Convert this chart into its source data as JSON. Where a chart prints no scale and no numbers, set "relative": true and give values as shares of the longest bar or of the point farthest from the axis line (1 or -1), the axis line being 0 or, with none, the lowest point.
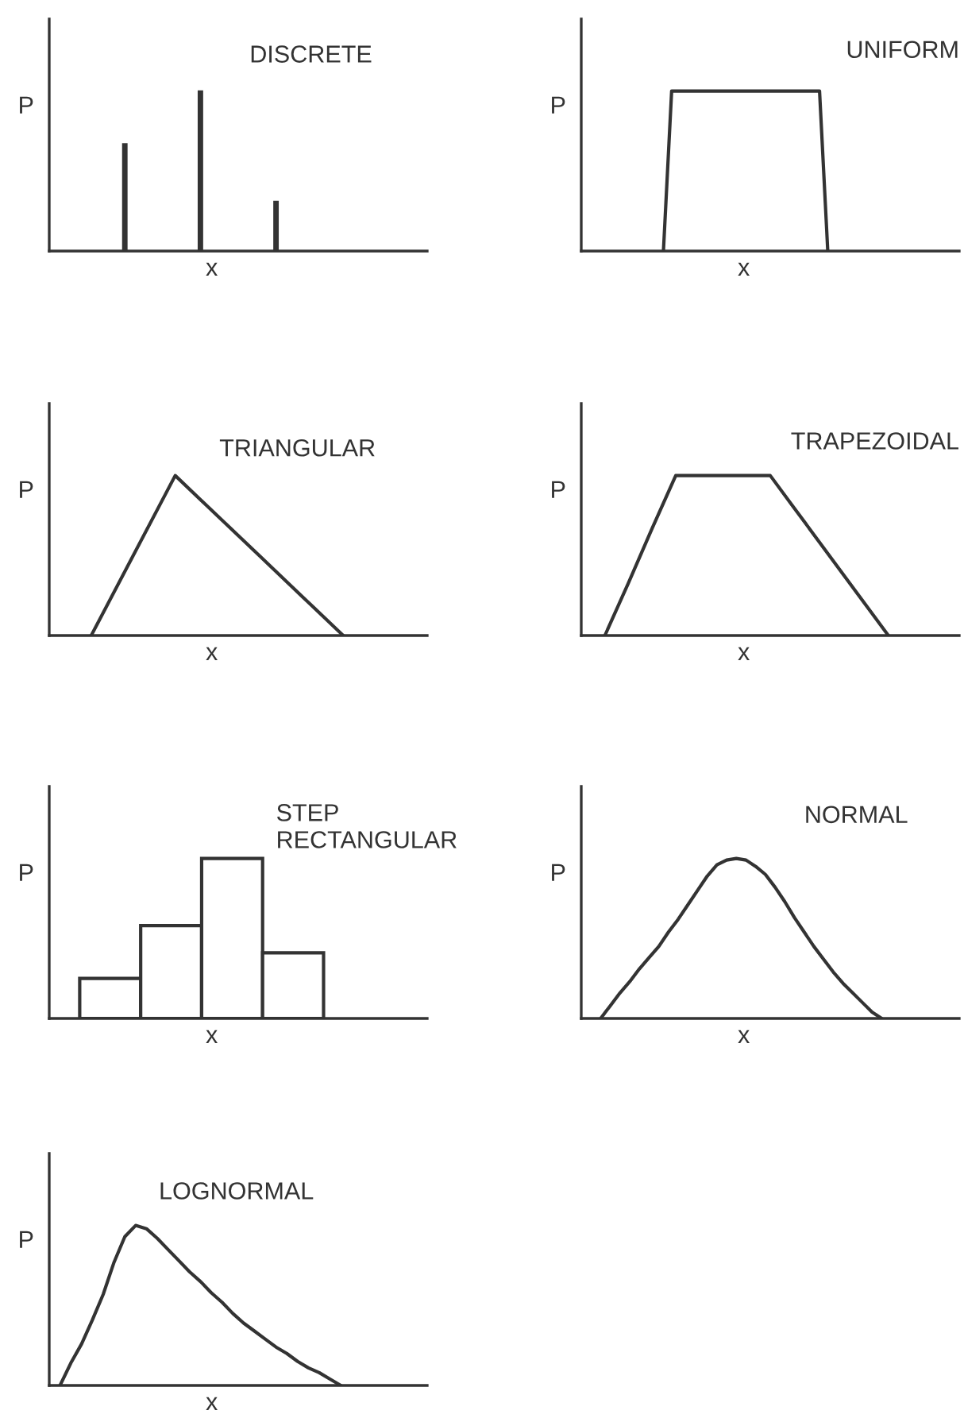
{
  "chart_data": [
    {
      "type": "bar",
      "title": "DISCRETE",
      "xlabel": "x",
      "ylabel": "P",
      "relative": true,
      "categories": [
        null,
        null,
        null
      ],
      "series": [
        {
          "color": "#333333",
          "values": [
            0.67,
            1,
            0.31
          ]
        }
      ]
    },
    {
      "type": "line",
      "title": "UNIFORM",
      "xlabel": "x",
      "ylabel": "P",
      "relative": true,
      "categories": [
        null,
        null,
        null,
        null,
        null,
        null,
        null,
        null,
        null,
        null,
        null,
        null,
        null,
        null,
        null,
        null,
        null,
        null,
        null,
        null,
        null,
        null,
        null,
        null,
        null,
        null,
        null,
        null,
        null,
        null,
        null,
        null,
        null,
        null,
        null,
        null,
        null,
        null,
        null,
        null,
        null,
        null,
        null,
        null,
        null,
        null,
        null
      ],
      "series": [
        {
          "color": "#333333",
          "values": [
            null,
            null,
            null,
            null,
            null,
            null,
            null,
            null,
            null,
            null,
            0,
            1,
            1,
            1,
            1,
            1,
            1,
            1,
            1,
            1,
            1,
            1,
            1,
            1,
            1,
            1,
            1,
            1,
            1,
            1,
            0,
            null,
            null,
            null,
            null,
            null,
            null,
            null,
            null,
            null,
            null,
            null,
            null,
            null,
            null,
            null,
            null
          ]
        }
      ]
    },
    {
      "type": "line",
      "title": "TRIANGULAR",
      "xlabel": "x",
      "ylabel": "P",
      "relative": true,
      "categories": [
        null,
        null,
        null,
        null,
        null,
        null,
        null,
        null,
        null,
        null
      ],
      "series": [
        {
          "color": "#333333",
          "values": [
            null,
            0,
            0.5,
            1,
            0.75,
            0.5,
            0.25,
            0,
            null,
            null
          ]
        }
      ]
    },
    {
      "type": "line",
      "title": "TRAPEZOIDAL",
      "xlabel": "x",
      "ylabel": "P",
      "relative": true,
      "categories": [
        null,
        null,
        null,
        null,
        null,
        null,
        null,
        null,
        null,
        null,
        null,
        null,
        null,
        null,
        null,
        null,
        null
      ],
      "series": [
        {
          "color": "#333333",
          "values": [
            null,
            0,
            0.33,
            0.67,
            1,
            1,
            1,
            1,
            1,
            0.8,
            0.6,
            0.4,
            0.2,
            0,
            null,
            null,
            null
          ]
        }
      ]
    },
    {
      "type": "bar",
      "title": "STEP\nRECTANGULAR",
      "xlabel": "x",
      "ylabel": "P",
      "relative": true,
      "categories": [
        null,
        null,
        null,
        null
      ],
      "series": [
        {
          "color": "#ffffff",
          "values": [
            0.25,
            0.58,
            1,
            0.41
          ]
        }
      ]
    },
    {
      "type": "line",
      "title": "NORMAL",
      "xlabel": "x",
      "ylabel": "P",
      "relative": true,
      "categories": [
        null,
        null,
        null,
        null,
        null,
        null,
        null,
        null,
        null,
        null,
        null,
        null,
        null,
        null,
        null,
        null,
        null,
        null,
        null,
        null,
        null,
        null,
        null,
        null,
        null,
        null,
        null,
        null,
        null,
        null,
        null,
        null,
        null,
        null,
        null,
        null,
        null,
        null,
        null,
        null
      ],
      "series": [
        {
          "color": "#333333",
          "values": [
            null,
            null,
            0,
            0.08,
            0.16,
            0.23,
            0.31,
            0.38,
            0.45,
            0.54,
            0.62,
            0.71,
            0.8,
            0.89,
            0.96,
            0.99,
            1,
            0.99,
            0.95,
            0.9,
            0.82,
            0.73,
            0.63,
            0.54,
            0.45,
            0.37,
            0.29,
            0.22,
            0.16,
            0.1,
            0.04,
            0,
            null,
            null,
            null,
            null,
            null,
            null,
            null,
            null
          ]
        }
      ]
    },
    {
      "type": "line",
      "title": "LOGNORMAL",
      "xlabel": "x",
      "ylabel": "P",
      "relative": true,
      "categories": [
        null,
        null,
        null,
        null,
        null,
        null,
        null,
        null,
        null,
        null,
        null,
        null,
        null,
        null,
        null,
        null,
        null,
        null,
        null,
        null,
        null,
        null,
        null,
        null,
        null,
        null,
        null,
        null,
        null,
        null,
        null,
        null,
        null,
        null,
        null,
        null
      ],
      "series": [
        {
          "color": "#333333",
          "values": [
            null,
            0,
            0.14,
            0.26,
            0.41,
            0.57,
            0.77,
            0.93,
            1,
            0.98,
            0.92,
            0.85,
            0.78,
            0.71,
            0.65,
            0.58,
            0.52,
            0.45,
            0.39,
            0.34,
            0.29,
            0.24,
            0.2,
            0.15,
            0.11,
            0.08,
            0.04,
            0,
            null,
            null,
            null,
            null,
            null,
            null,
            null,
            null
          ]
        }
      ]
    }
  ]
}
